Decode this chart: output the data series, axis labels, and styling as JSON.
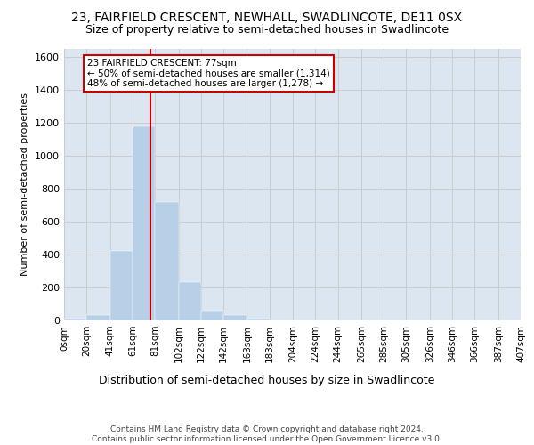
{
  "title_line1": "23, FAIRFIELD CRESCENT, NEWHALL, SWADLINCOTE, DE11 0SX",
  "title_line2": "Size of property relative to semi-detached houses in Swadlincote",
  "xlabel": "Distribution of semi-detached houses by size in Swadlincote",
  "ylabel": "Number of semi-detached properties",
  "footer_line1": "Contains HM Land Registry data © Crown copyright and database right 2024.",
  "footer_line2": "Contains public sector information licensed under the Open Government Licence v3.0.",
  "bar_edges": [
    0,
    20,
    41,
    61,
    81,
    102,
    122,
    142,
    163,
    183,
    204,
    224,
    244,
    265,
    285,
    305,
    326,
    346,
    366,
    387,
    407
  ],
  "bar_heights": [
    10,
    30,
    420,
    1180,
    720,
    230,
    60,
    30,
    10,
    0,
    0,
    0,
    0,
    0,
    0,
    0,
    0,
    0,
    0,
    0
  ],
  "bar_color": "#b8cfe8",
  "bar_edgecolor": "#b8cfe8",
  "tick_labels": [
    "0sqm",
    "20sqm",
    "41sqm",
    "61sqm",
    "81sqm",
    "102sqm",
    "122sqm",
    "142sqm",
    "163sqm",
    "183sqm",
    "204sqm",
    "224sqm",
    "244sqm",
    "265sqm",
    "285sqm",
    "305sqm",
    "326sqm",
    "346sqm",
    "366sqm",
    "387sqm",
    "407sqm"
  ],
  "annotation_title": "23 FAIRFIELD CRESCENT: 77sqm",
  "annotation_line1": "← 50% of semi-detached houses are smaller (1,314)",
  "annotation_line2": "48% of semi-detached houses are larger (1,278) →",
  "annotation_box_color": "#ffffff",
  "annotation_box_edgecolor": "#cc0000",
  "vline_x": 77,
  "vline_color": "#cc0000",
  "ylim": [
    0,
    1650
  ],
  "yticks": [
    0,
    200,
    400,
    600,
    800,
    1000,
    1200,
    1400,
    1600
  ],
  "grid_color": "#cccccc",
  "bg_color": "#dce6f0",
  "title_fontsize": 10,
  "subtitle_fontsize": 9,
  "footer_fontsize": 6.5,
  "xlabel_fontsize": 9,
  "ylabel_fontsize": 8,
  "annotation_fontsize": 7.5,
  "tick_fontsize": 7.5,
  "ytick_fontsize": 8
}
